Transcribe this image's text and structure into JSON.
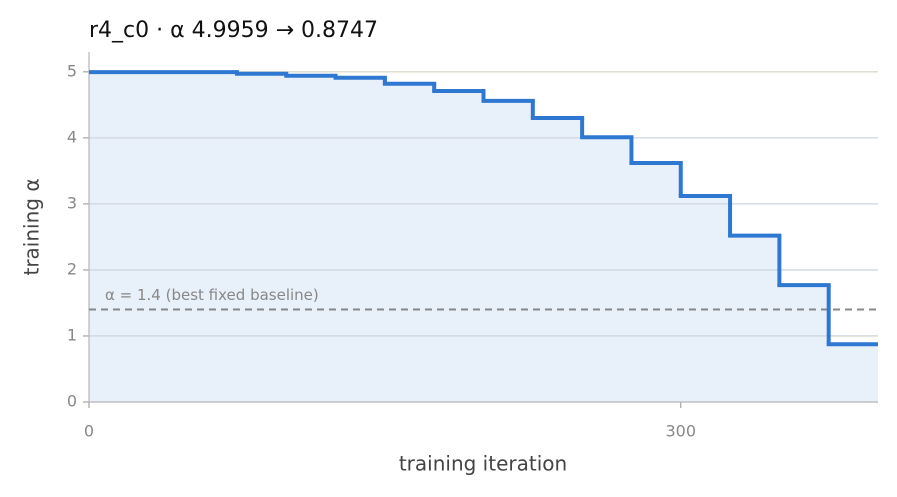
{
  "chart_data": {
    "type": "step",
    "title": "r4_c0   ·   α 4.9959 → 0.8747",
    "x_label": "training iteration",
    "y_label": "training α",
    "x": [
      0,
      75,
      100,
      125,
      150,
      175,
      200,
      225,
      250,
      275,
      300,
      325,
      350,
      375
    ],
    "values": [
      4.9959,
      4.97,
      4.94,
      4.91,
      4.82,
      4.71,
      4.56,
      4.3,
      4.01,
      3.62,
      3.12,
      2.52,
      1.77,
      0.8747
    ],
    "color": "#2e78d2",
    "fill_color": "#e8f0fa",
    "xlim": [
      0,
      400
    ],
    "ylim": [
      0,
      5.3
    ],
    "xticks": [
      0,
      300
    ],
    "yticks": [
      0,
      1,
      2,
      3,
      4,
      5
    ],
    "grid": true,
    "reference_line": {
      "value": 1.4,
      "label": "α = 1.4 (best fixed baseline)"
    }
  }
}
